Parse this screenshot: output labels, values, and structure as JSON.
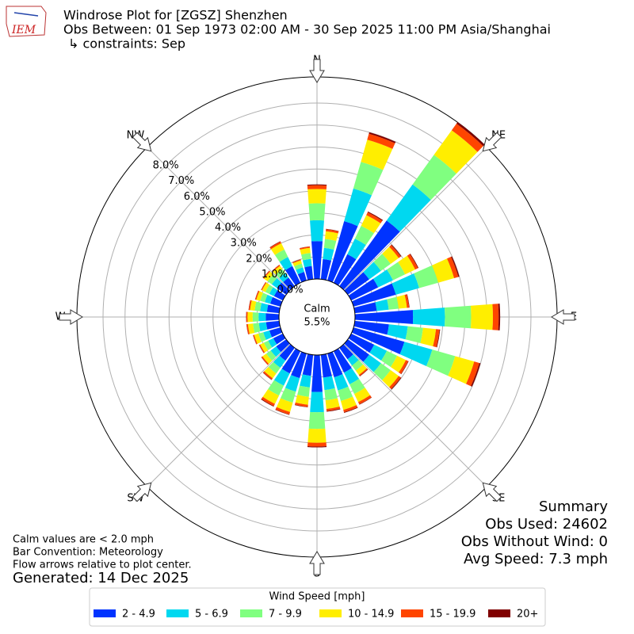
{
  "chart_data": {
    "type": "windrose",
    "logo_text": "IEM",
    "title": "Windrose Plot for [ZGSZ] Shenzhen",
    "subtitle": "Obs Between: 01 Sep 1973 02:00 AM - 30 Sep 2025 11:00 PM Asia/Shanghai",
    "constraints": "↳ constraints: Sep",
    "compass": [
      "N",
      "NE",
      "E",
      "SE",
      "S",
      "SW",
      "W",
      "NW"
    ],
    "categories": [
      null,
      null,
      null,
      null,
      null,
      null,
      null,
      null,
      null,
      null,
      null,
      null,
      null,
      null,
      null,
      null,
      null,
      null,
      null,
      null,
      null,
      null,
      null,
      null,
      null,
      null,
      null,
      null,
      null,
      null,
      null,
      null,
      null,
      null,
      null,
      null
    ],
    "ylim": [
      0,
      9.3
    ],
    "yticks": [
      {
        "value": 0,
        "label": "0.0%"
      },
      {
        "value": 1,
        "label": "1.0%"
      },
      {
        "value": 2,
        "label": "2.0%"
      },
      {
        "value": 3,
        "label": "3.0%"
      },
      {
        "value": 4,
        "label": "4.0%"
      },
      {
        "value": 5,
        "label": "5.0%"
      },
      {
        "value": 6,
        "label": "6.0%"
      },
      {
        "value": 7,
        "label": "7.0%"
      },
      {
        "value": 8,
        "label": "8.0%"
      }
    ],
    "grid": true,
    "calm_label": "Calm",
    "calm_value": 5.5,
    "calm_value_label": "5.5%",
    "legend_title": "Wind Speed [mph]",
    "series": [
      {
        "name": "2 - 4.9",
        "color": "#0033ff",
        "values": [
          1.72,
          0.92,
          2.8,
          1.44,
          3.68,
          1.2,
          1.36,
          2.0,
          1.0,
          2.64,
          1.56,
          2.4,
          1.16,
          1.2,
          0.64,
          1.08,
          1.12,
          1.04,
          1.68,
          0.96,
          1.16,
          1.12,
          0.72,
          0.56,
          0.48,
          0.52,
          0.6,
          0.6,
          0.56,
          0.48,
          0.44,
          0.52,
          0.48,
          0.84,
          0.4,
          0.6
        ]
      },
      {
        "name": "5 - 6.9",
        "color": "#00d8f0",
        "values": [
          0.95,
          0.51,
          1.54,
          0.79,
          2.02,
          0.66,
          0.75,
          1.1,
          0.55,
          1.45,
          0.86,
          1.32,
          0.64,
          0.66,
          0.35,
          0.59,
          0.62,
          0.57,
          0.92,
          0.53,
          0.64,
          0.62,
          0.4,
          0.31,
          0.26,
          0.29,
          0.33,
          0.33,
          0.31,
          0.26,
          0.24,
          0.29,
          0.26,
          0.46,
          0.22,
          0.33
        ]
      },
      {
        "name": "7 - 9.9",
        "color": "#80ff80",
        "values": [
          0.77,
          0.41,
          1.26,
          0.65,
          1.66,
          0.54,
          0.61,
          0.9,
          0.45,
          1.19,
          0.7,
          1.08,
          0.52,
          0.54,
          0.29,
          0.49,
          0.5,
          0.47,
          0.76,
          0.43,
          0.52,
          0.5,
          0.32,
          0.25,
          0.22,
          0.23,
          0.27,
          0.27,
          0.25,
          0.22,
          0.2,
          0.23,
          0.22,
          0.38,
          0.18,
          0.27
        ]
      },
      {
        "name": "10 - 14.9",
        "color": "#ffee00",
        "values": [
          0.65,
          0.35,
          1.05,
          0.54,
          1.38,
          0.45,
          0.51,
          0.75,
          0.38,
          0.99,
          0.59,
          0.9,
          0.44,
          0.45,
          0.24,
          0.41,
          0.42,
          0.39,
          0.63,
          0.36,
          0.44,
          0.42,
          0.27,
          0.21,
          0.18,
          0.2,
          0.23,
          0.23,
          0.21,
          0.18,
          0.17,
          0.2,
          0.18,
          0.32,
          0.15,
          0.23
        ]
      },
      {
        "name": "15 - 19.9",
        "color": "#ff4500",
        "values": [
          0.17,
          0.09,
          0.28,
          0.14,
          0.37,
          0.12,
          0.14,
          0.2,
          0.1,
          0.26,
          0.16,
          0.24,
          0.12,
          0.12,
          0.06,
          0.11,
          0.11,
          0.1,
          0.17,
          0.1,
          0.12,
          0.11,
          0.07,
          0.06,
          0.05,
          0.05,
          0.06,
          0.06,
          0.06,
          0.05,
          0.04,
          0.05,
          0.05,
          0.08,
          0.04,
          0.06
        ]
      },
      {
        "name": "20+",
        "color": "#800000",
        "values": [
          0.04,
          0.02,
          0.07,
          0.04,
          0.09,
          0.03,
          0.03,
          0.05,
          0.02,
          0.07,
          0.03,
          0.06,
          0.02,
          0.03,
          0.02,
          0.02,
          0.03,
          0.03,
          0.04,
          0.02,
          0.02,
          0.03,
          0.02,
          0.01,
          0.01,
          0.01,
          0.01,
          0.01,
          0.01,
          0.01,
          0.01,
          0.01,
          0.01,
          0.02,
          0.01,
          0.01
        ]
      }
    ],
    "summary": [
      "Summary",
      "Obs Used: 24602",
      "Obs Without Wind: 0",
      "Avg Speed: 7.3 mph"
    ],
    "notes": [
      "Calm values are < 2.0 mph",
      "Bar Convention: Meteorology",
      "Flow arrows relative to plot center."
    ],
    "generated": "Generated: 14 Dec 2025"
  }
}
